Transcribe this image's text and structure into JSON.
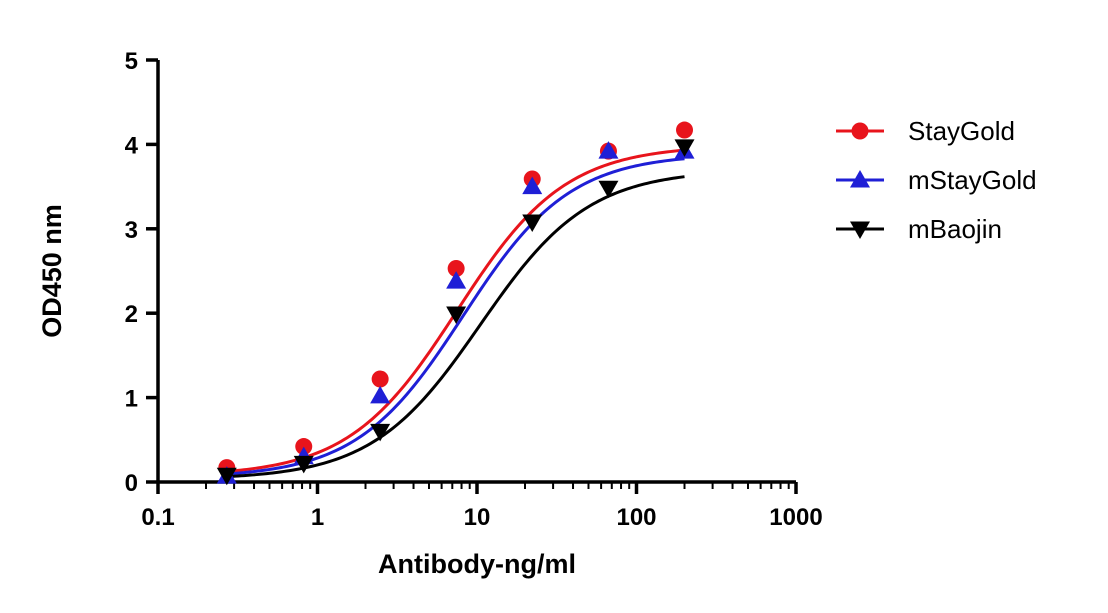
{
  "chart_data": {
    "type": "scatter",
    "title": "",
    "xlabel": "Antibody-ng/ml",
    "ylabel": "OD450 nm",
    "xscale": "log",
    "xlim": [
      0.1,
      1000
    ],
    "ylim": [
      0,
      5
    ],
    "xticks": [
      0.1,
      1,
      10,
      100,
      1000
    ],
    "xtick_labels": [
      "0.1",
      "1",
      "10",
      "100",
      "1000"
    ],
    "yticks": [
      0,
      1,
      2,
      3,
      4,
      5
    ],
    "ytick_labels": [
      "0",
      "1",
      "2",
      "3",
      "4",
      "5"
    ],
    "grid": false,
    "legend_position": "right",
    "fit": "sigmoidal dose-response curves",
    "series": [
      {
        "name": "StayGold",
        "color": "#e8141c",
        "marker": "circle",
        "x": [
          0.27,
          0.82,
          2.47,
          7.4,
          22.2,
          66.7,
          200
        ],
        "y": [
          0.17,
          0.42,
          1.22,
          2.53,
          3.59,
          3.92,
          4.17
        ],
        "fit": {
          "bottom": 0.07,
          "top": 3.99,
          "ec50": 7.5,
          "hill": 1.28
        }
      },
      {
        "name": "mStayGold",
        "color": "#1f1fd6",
        "marker": "triangle-up",
        "x": [
          0.27,
          0.82,
          2.47,
          7.4,
          22.2,
          66.7,
          200
        ],
        "y": [
          0.07,
          0.3,
          1.02,
          2.38,
          3.5,
          3.92,
          3.92
        ],
        "fit": {
          "bottom": 0.05,
          "top": 3.89,
          "ec50": 8.2,
          "hill": 1.3
        }
      },
      {
        "name": "mBaojin",
        "color": "#000000",
        "marker": "triangle-down",
        "x": [
          0.27,
          0.82,
          2.47,
          7.4,
          22.2,
          66.7,
          200
        ],
        "y": [
          0.08,
          0.22,
          0.6,
          1.99,
          3.08,
          3.48,
          3.97
        ],
        "fit": {
          "bottom": 0.03,
          "top": 3.7,
          "ec50": 10.5,
          "hill": 1.28
        }
      }
    ]
  }
}
